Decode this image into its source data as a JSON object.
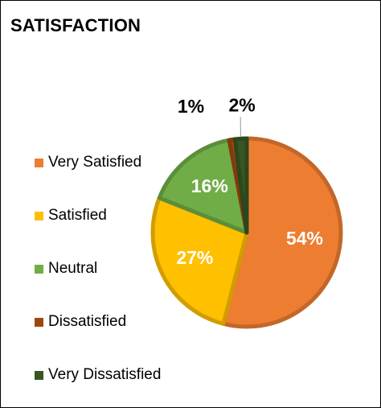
{
  "chart_data": {
    "type": "pie",
    "title": "SATISFACTION",
    "categories": [
      "Very Satisfied",
      "Satisfied",
      "Neutral",
      "Dissatisfied",
      "Very Dissatisfied"
    ],
    "values": [
      54,
      27,
      16,
      1,
      2
    ],
    "data_labels": [
      "54%",
      "27%",
      "16%",
      "1%",
      "2%"
    ],
    "colors": [
      "#ED7D31",
      "#FFC000",
      "#70AD47",
      "#9E480E",
      "#375623"
    ],
    "label_colors": [
      "#FFFFFF",
      "#FFFFFF",
      "#FFFFFF",
      "#000000",
      "#000000"
    ],
    "legend_position": "left",
    "start_angle_deg": 0,
    "direction": "clockwise"
  }
}
